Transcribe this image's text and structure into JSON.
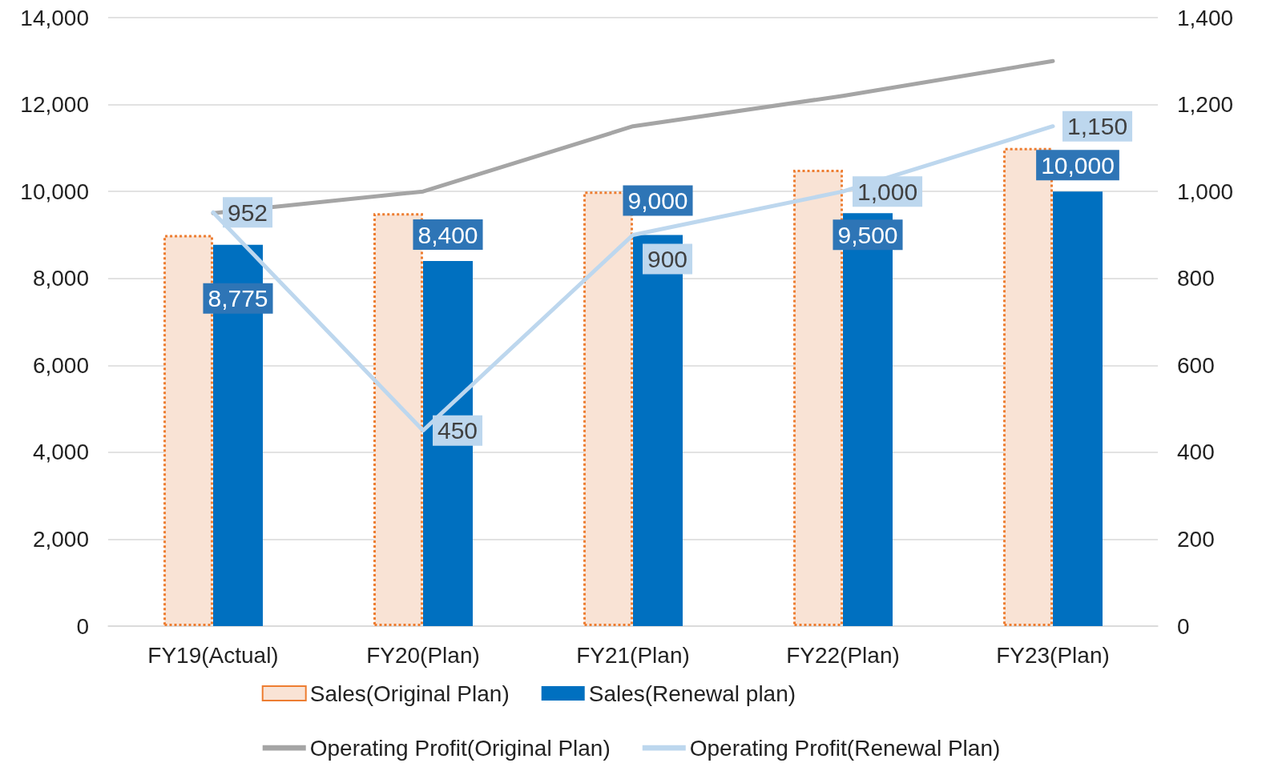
{
  "chart_data": {
    "type": "bar",
    "categories": [
      "FY19(Actual)",
      "FY20(Plan)",
      "FY21(Plan)",
      "FY22(Plan)",
      "FY23(Plan)"
    ],
    "series": [
      {
        "name": "Sales(Original Plan)",
        "color": "#f9e3d5",
        "line_style": "dotted",
        "values": [
          9000,
          9500,
          10000,
          10500,
          11000
        ]
      },
      {
        "name": "Sales(Renewal plan)",
        "color": "#0070c0",
        "values": [
          8775,
          8400,
          9000,
          9500,
          10000
        ],
        "value_labels": [
          "8,775",
          "8,400",
          "9,000",
          "9,500",
          "10,000"
        ]
      },
      {
        "name": "Operating Profit(Original Plan)",
        "type": "line",
        "axis": "y2",
        "color": "#a5a5a5",
        "values": [
          950,
          1000,
          1150,
          1220,
          1300
        ]
      },
      {
        "name": "Operating Profit(Renewal Plan)",
        "type": "line",
        "axis": "y2",
        "color": "#bdd7ee",
        "values": [
          952,
          450,
          900,
          1000,
          1150
        ],
        "value_labels": [
          "952",
          "450",
          "900",
          "1,000",
          "1,150"
        ]
      }
    ],
    "ylim": [
      0,
      14000
    ],
    "yticks": [
      0,
      {
        "value": 2000,
        "label": "2,000"
      },
      {
        "value": 4000,
        "label": "4,000"
      },
      {
        "value": 6000,
        "label": "6,000"
      },
      {
        "value": 8000,
        "label": "8,000"
      },
      {
        "value": 10000,
        "label": "10,000"
      },
      {
        "value": 12000,
        "label": "12,000"
      },
      {
        "value": 14000,
        "label": "14,000"
      }
    ],
    "y2lim": [
      0,
      1400
    ],
    "y2ticks": [
      0,
      200,
      400,
      600,
      800,
      {
        "value": 1000,
        "label": "1,000"
      },
      {
        "value": 1200,
        "label": "1,200"
      },
      {
        "value": 1400,
        "label": "1,400"
      }
    ],
    "grid": "y",
    "legend": "bottom",
    "marker": "none"
  }
}
